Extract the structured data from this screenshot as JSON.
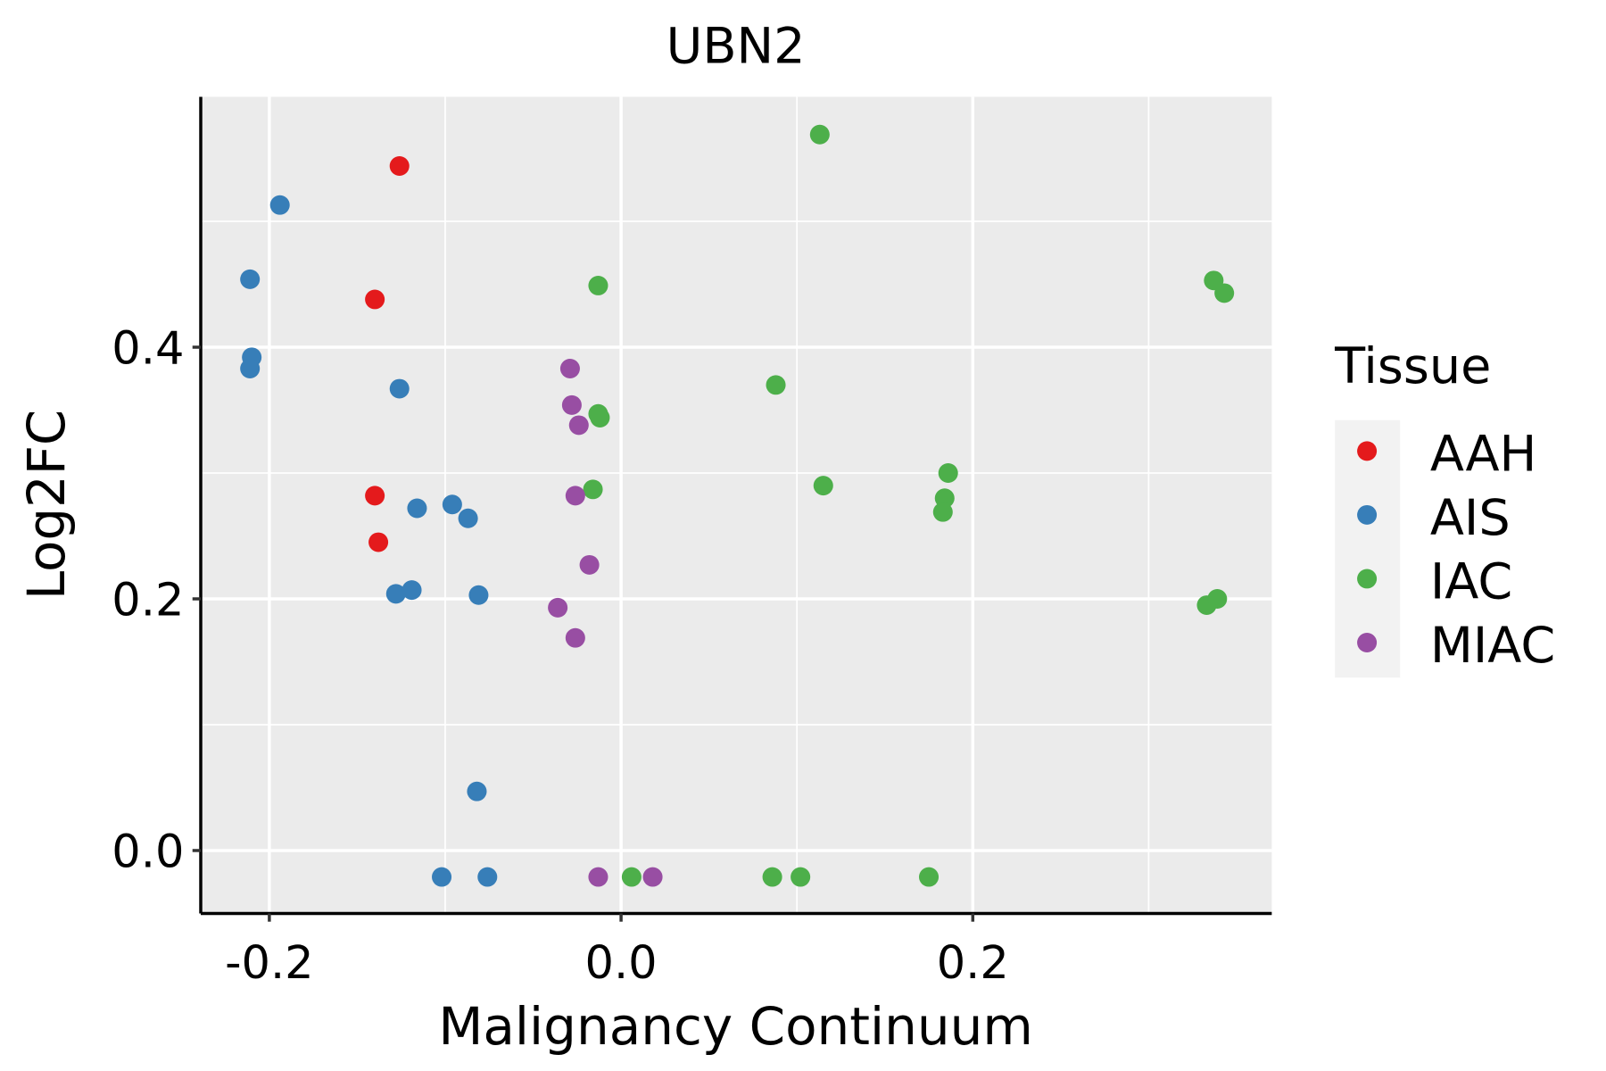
{
  "chart_data": {
    "type": "scatter",
    "title": "UBN2",
    "xlabel": "Malignancy Continuum",
    "ylabel": "Log2FC",
    "xlim": [
      -0.239,
      0.37
    ],
    "ylim": [
      -0.05,
      0.599
    ],
    "xticks": [
      -0.2,
      0.0,
      0.2
    ],
    "xtick_labels": [
      "-0.2",
      "0.0",
      "0.2"
    ],
    "xminor": [
      -0.1,
      0.1,
      0.3
    ],
    "yticks": [
      0.0,
      0.2,
      0.4
    ],
    "ytick_labels": [
      "0.0",
      "0.2",
      "0.4"
    ],
    "yminor": [
      0.1,
      0.3,
      0.5
    ],
    "grid": true,
    "legend": {
      "title": "Tissue",
      "placement": "right"
    },
    "series": [
      {
        "name": "AAH",
        "color": "#E41A1C",
        "points": [
          [
            -0.126,
            0.544
          ],
          [
            -0.14,
            0.438
          ],
          [
            -0.14,
            0.282
          ],
          [
            -0.138,
            0.245
          ]
        ]
      },
      {
        "name": "AIS",
        "color": "#377EB8",
        "points": [
          [
            -0.194,
            0.513
          ],
          [
            -0.211,
            0.454
          ],
          [
            -0.21,
            0.392
          ],
          [
            -0.211,
            0.383
          ],
          [
            -0.126,
            0.367
          ],
          [
            -0.116,
            0.272
          ],
          [
            -0.096,
            0.275
          ],
          [
            -0.087,
            0.264
          ],
          [
            -0.128,
            0.204
          ],
          [
            -0.119,
            0.207
          ],
          [
            -0.081,
            0.203
          ],
          [
            -0.082,
            0.047
          ],
          [
            -0.102,
            -0.021
          ],
          [
            -0.076,
            -0.021
          ]
        ]
      },
      {
        "name": "IAC",
        "color": "#4DAF4A",
        "points": [
          [
            0.113,
            0.569
          ],
          [
            -0.013,
            0.449
          ],
          [
            0.337,
            0.453
          ],
          [
            0.343,
            0.443
          ],
          [
            0.088,
            0.37
          ],
          [
            -0.013,
            0.347
          ],
          [
            -0.012,
            0.344
          ],
          [
            -0.016,
            0.287
          ],
          [
            0.115,
            0.29
          ],
          [
            0.186,
            0.3
          ],
          [
            0.184,
            0.28
          ],
          [
            0.183,
            0.269
          ],
          [
            0.333,
            0.195
          ],
          [
            0.339,
            0.2
          ],
          [
            0.006,
            -0.021
          ],
          [
            0.086,
            -0.021
          ],
          [
            0.102,
            -0.021
          ],
          [
            0.175,
            -0.021
          ]
        ]
      },
      {
        "name": "MIAC",
        "color": "#984EA3",
        "points": [
          [
            -0.029,
            0.383
          ],
          [
            -0.028,
            0.354
          ],
          [
            -0.024,
            0.338
          ],
          [
            -0.026,
            0.282
          ],
          [
            -0.018,
            0.227
          ],
          [
            -0.036,
            0.193
          ],
          [
            -0.026,
            0.169
          ],
          [
            -0.013,
            -0.021
          ],
          [
            0.018,
            -0.021
          ]
        ]
      }
    ]
  }
}
